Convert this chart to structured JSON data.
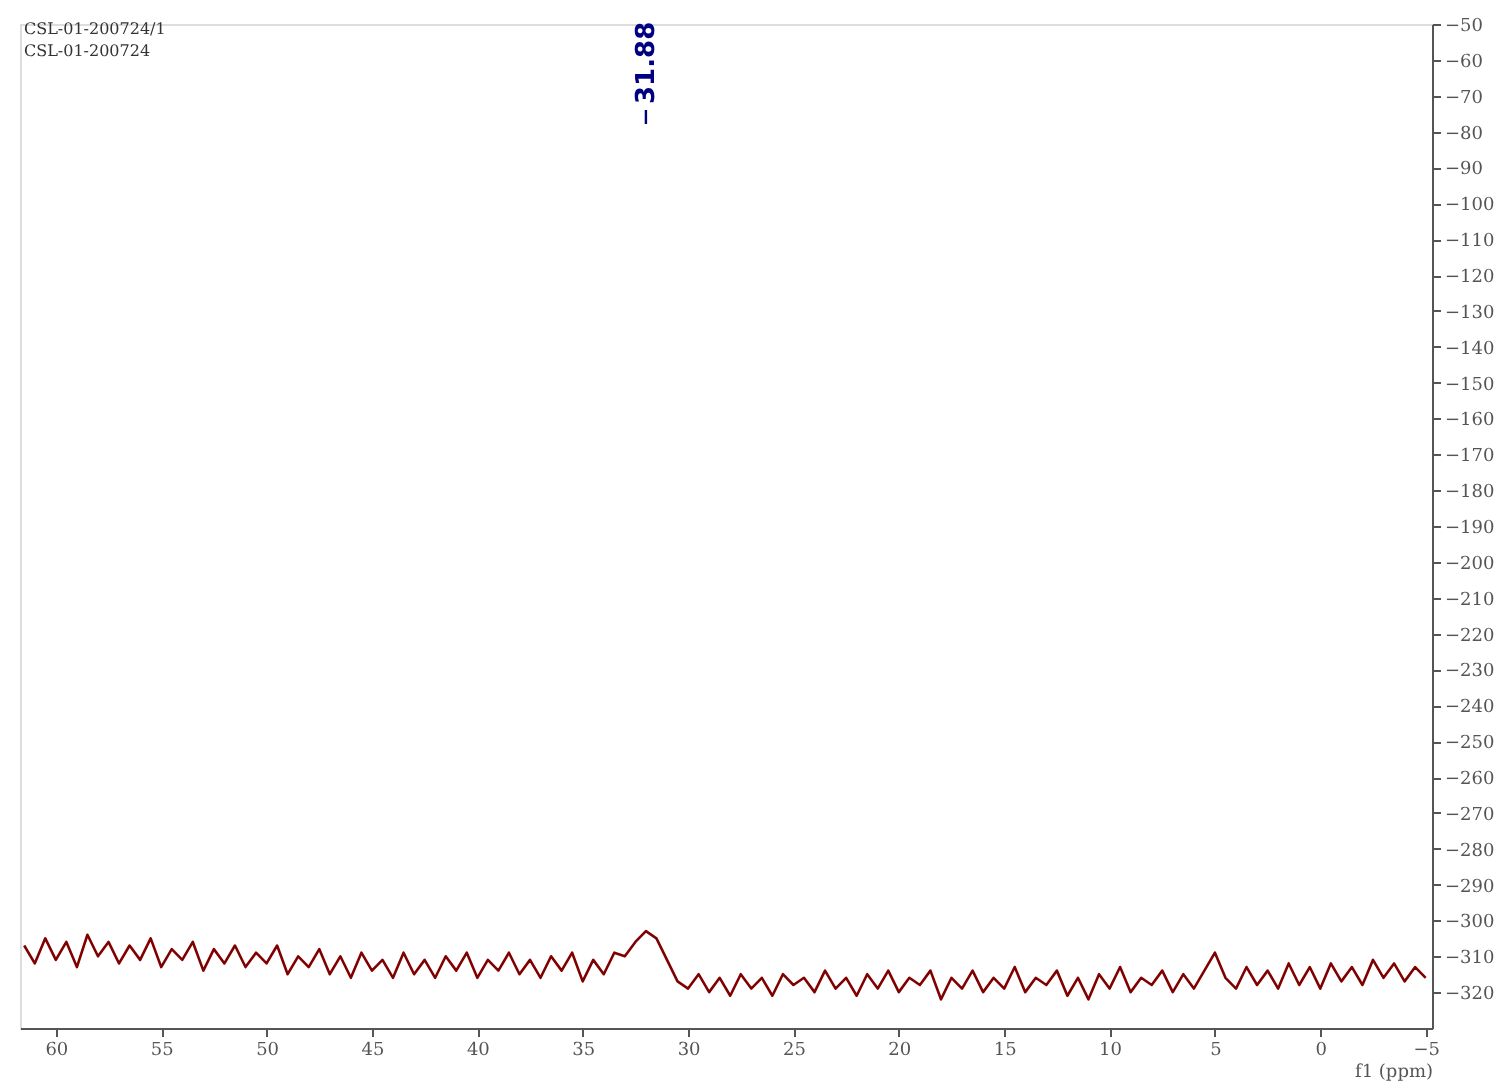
{
  "chart_data": {
    "type": "line",
    "title": "CSL-01-200724/1",
    "subtitle": "CSL-01-200724",
    "xlabel": "f1 (ppm)",
    "annotations": [
      "31.88"
    ],
    "x": [
      61.5,
      61.0,
      60.5,
      60.0,
      59.5,
      59.0,
      58.5,
      58.0,
      57.5,
      57.0,
      56.5,
      56.0,
      55.5,
      55.0,
      54.5,
      54.0,
      53.5,
      53.0,
      52.5,
      52.0,
      51.5,
      51.0,
      50.5,
      50.0,
      49.5,
      49.0,
      48.5,
      48.0,
      47.5,
      47.0,
      46.5,
      46.0,
      45.5,
      45.0,
      44.5,
      44.0,
      43.5,
      43.0,
      42.5,
      42.0,
      41.5,
      41.0,
      40.5,
      40.0,
      39.5,
      39.0,
      38.5,
      38.0,
      37.5,
      37.0,
      36.5,
      36.0,
      35.5,
      35.0,
      34.5,
      34.0,
      33.5,
      33.0,
      32.5,
      32.0,
      31.5,
      31.0,
      30.5,
      30.0,
      29.5,
      29.0,
      28.5,
      28.0,
      27.5,
      27.0,
      26.5,
      26.0,
      25.5,
      25.0,
      24.5,
      24.0,
      23.5,
      23.0,
      22.5,
      22.0,
      21.5,
      21.0,
      20.5,
      20.0,
      19.5,
      19.0,
      18.5,
      18.0,
      17.5,
      17.0,
      16.5,
      16.0,
      15.5,
      15.0,
      14.5,
      14.0,
      13.5,
      13.0,
      12.5,
      12.0,
      11.5,
      11.0,
      10.5,
      10.0,
      9.5,
      9.0,
      8.5,
      8.0,
      7.5,
      7.0,
      6.5,
      6.0,
      5.5,
      5.0,
      4.5,
      4.0,
      3.5,
      3.0,
      2.5,
      2.0,
      1.5,
      1.0,
      0.5,
      0.0,
      -0.5,
      -1.0,
      -1.5,
      -2.0,
      -2.5,
      -3.0,
      -3.5,
      -4.0,
      -4.5,
      -5.0
    ],
    "series": [
      {
        "color": "#800000",
        "values": [
          -307,
          -312,
          -305,
          -311,
          -306,
          -313,
          -304,
          -310,
          -306,
          -312,
          -307,
          -311,
          -305,
          -313,
          -308,
          -311,
          -306,
          -314,
          -308,
          -312,
          -307,
          -313,
          -309,
          -312,
          -307,
          -315,
          -310,
          -313,
          -308,
          -315,
          -310,
          -316,
          -309,
          -314,
          -311,
          -316,
          -309,
          -315,
          -311,
          -316,
          -310,
          -314,
          -309,
          -316,
          -311,
          -314,
          -309,
          -315,
          -311,
          -316,
          -310,
          -314,
          -309,
          -317,
          -311,
          -315,
          -309,
          -310,
          -306,
          -303,
          -305,
          -311,
          -317,
          -319,
          -315,
          -320,
          -316,
          -321,
          -315,
          -319,
          -316,
          -321,
          -315,
          -318,
          -316,
          -320,
          -314,
          -319,
          -316,
          -321,
          -315,
          -319,
          -314,
          -320,
          -316,
          -318,
          -314,
          -322,
          -316,
          -319,
          -314,
          -320,
          -316,
          -319,
          -313,
          -320,
          -316,
          -318,
          -314,
          -321,
          -316,
          -322,
          -315,
          -319,
          -313,
          -320,
          -316,
          -318,
          -314,
          -320,
          -315,
          -319,
          -314,
          -309,
          -316,
          -319,
          -313,
          -318,
          -314,
          -319,
          -312,
          -318,
          -313,
          -319,
          -312,
          -317,
          -313,
          -318,
          -311,
          -316,
          -312,
          -317,
          -313,
          -316
        ]
      }
    ],
    "xlim": [
      61.7,
      -5.3
    ],
    "xticks": [
      60,
      55,
      50,
      45,
      40,
      35,
      30,
      25,
      20,
      15,
      10,
      5,
      0,
      -5
    ],
    "ylim": [
      -330,
      -50
    ],
    "yticks": [
      -50,
      -60,
      -70,
      -80,
      -90,
      -100,
      -110,
      -120,
      -130,
      -140,
      -150,
      -160,
      -170,
      -180,
      -190,
      -200,
      -210,
      -220,
      -230,
      -240,
      -250,
      -260,
      -270,
      -280,
      -290,
      -300,
      -310,
      -320
    ],
    "grid": false,
    "line_style": "solid"
  }
}
